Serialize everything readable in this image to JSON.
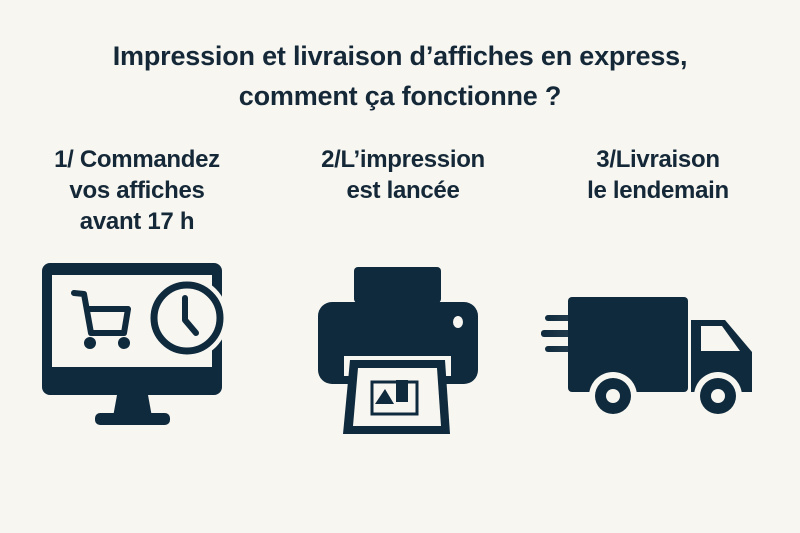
{
  "title": {
    "line1": "Impression et livraison d’affiches en express,",
    "line2": "comment ça fonctionne ?"
  },
  "steps": [
    {
      "lines": [
        "1/ Commandez",
        "vos affiches",
        "avant 17 h"
      ],
      "icon": "monitor-cart-clock-icon"
    },
    {
      "lines": [
        "2/L’impression",
        "est lancée"
      ],
      "icon": "printer-icon"
    },
    {
      "lines": [
        "3/Livraison",
        "le lendemain"
      ],
      "icon": "delivery-truck-icon"
    }
  ],
  "colors": {
    "background": "#f7f6f1",
    "ink": "#0f2a3d"
  }
}
